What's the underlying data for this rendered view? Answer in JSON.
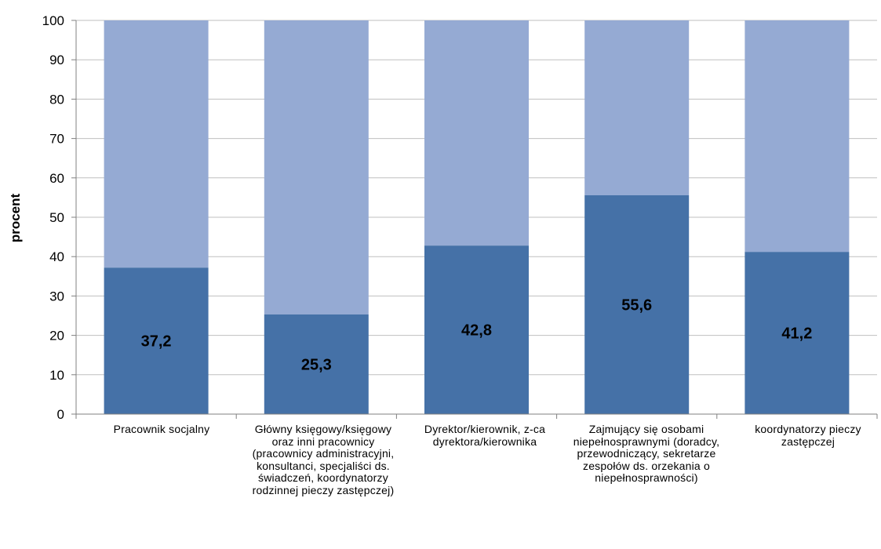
{
  "chart_data": {
    "type": "bar",
    "stacked": true,
    "ylabel": "procent",
    "ylim": [
      0,
      100
    ],
    "yticks": [
      "0",
      "10",
      "20",
      "30",
      "40",
      "50",
      "60",
      "70",
      "80",
      "90",
      "100"
    ],
    "grid": true,
    "categories": [
      "Pracownik socjalny",
      "Główny księgowy/księgowy oraz inni pracownicy (pracownicy administracyjni, konsultanci, specjaliści ds. świadczeń, koordynatorzy rodzinnej pieczy zastępczej)",
      "Dyrektor/kierownik, z-ca dyrektora/kierownika",
      "Zajmujący się osobami niepełnosprawnymi (doradcy, przewodniczący, sekretarze zespołów ds. orzekania o niepełnosprawności)",
      "koordynatorzy pieczy zastępczej"
    ],
    "values": [
      37.2,
      25.3,
      42.8,
      55.6,
      41.2
    ],
    "value_labels": [
      "37,2",
      "25,3",
      "42,8",
      "55,6",
      "41,2"
    ],
    "colors": {
      "primary": "#4571a7",
      "remainder": "#95aad3",
      "grid": "#bfbfbf"
    }
  }
}
